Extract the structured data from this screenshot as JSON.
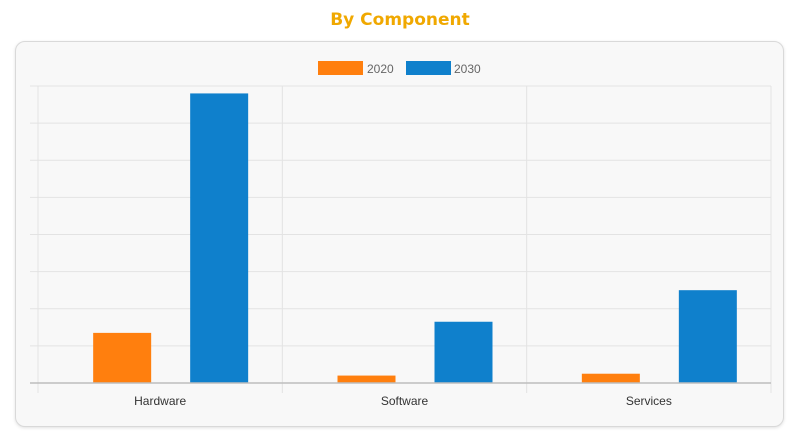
{
  "page": {
    "title": "By Component"
  },
  "colors": {
    "title": "#f0a800",
    "series_2020": "#ff7f0e",
    "series_2030": "#0f80cc",
    "grid": "#e3e3e3",
    "axis": "#bdbdbd",
    "card_background": "#f8f8f8"
  },
  "chart_data": {
    "type": "bar",
    "title": "",
    "xlabel": "",
    "ylabel": "",
    "categories": [
      "Hardware",
      "Software",
      "Services"
    ],
    "series": [
      {
        "name": "2020",
        "color": "#ff7f0e",
        "values": [
          13.5,
          2.0,
          2.5
        ]
      },
      {
        "name": "2030",
        "color": "#0f80cc",
        "values": [
          78,
          16.5,
          25
        ]
      }
    ],
    "ylim": [
      0,
      80
    ],
    "y_tick_step": 10,
    "y_tick_labels_shown": false,
    "grid": true,
    "legend_position": "top-center"
  }
}
